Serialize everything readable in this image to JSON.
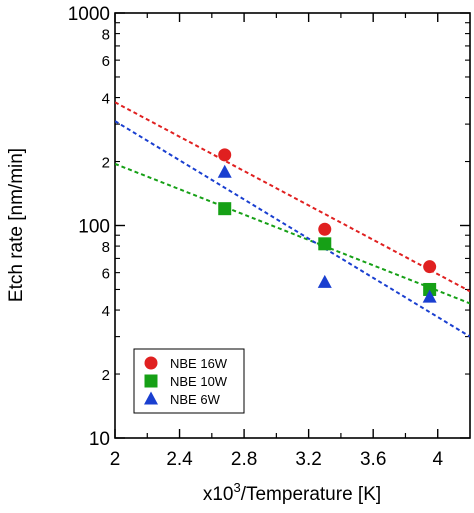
{
  "chart_data": {
    "type": "scatter",
    "title": "",
    "xlabel": {
      "prefix": "x10",
      "superscript": "3",
      "suffix": "/Temperature [K]"
    },
    "ylabel": "Etch rate [nm/min]",
    "xlim": [
      2.0,
      4.2
    ],
    "ylim": [
      10,
      1000
    ],
    "yscale": "log",
    "x_ticks": [
      "2",
      "2.4",
      "2.8",
      "3.2",
      "3.6",
      "4"
    ],
    "y_major_ticks": [
      "10",
      "100",
      "1000"
    ],
    "y_minor_labels": [
      "2",
      "4",
      "6",
      "8"
    ],
    "grid": false,
    "legend_position": "bottom-left",
    "series": [
      {
        "name": "NBE 16W",
        "marker": "circle",
        "color": "#e02020",
        "x": [
          2.68,
          3.3,
          3.95
        ],
        "y": [
          215,
          96,
          64
        ],
        "fit": {
          "x": [
            2.0,
            4.2
          ],
          "y": [
            380,
            49
          ]
        }
      },
      {
        "name": "NBE 10W",
        "marker": "square",
        "color": "#16a016",
        "x": [
          2.68,
          3.3,
          3.95
        ],
        "y": [
          120,
          82,
          50
        ],
        "fit": {
          "x": [
            2.0,
            4.2
          ],
          "y": [
            195,
            43
          ]
        }
      },
      {
        "name": "NBE 6W",
        "marker": "triangle",
        "color": "#1a3fd0",
        "x": [
          2.68,
          3.3,
          3.95
        ],
        "y": [
          178,
          54,
          46
        ],
        "fit": {
          "x": [
            2.0,
            4.2
          ],
          "y": [
            310,
            30
          ]
        }
      }
    ]
  }
}
